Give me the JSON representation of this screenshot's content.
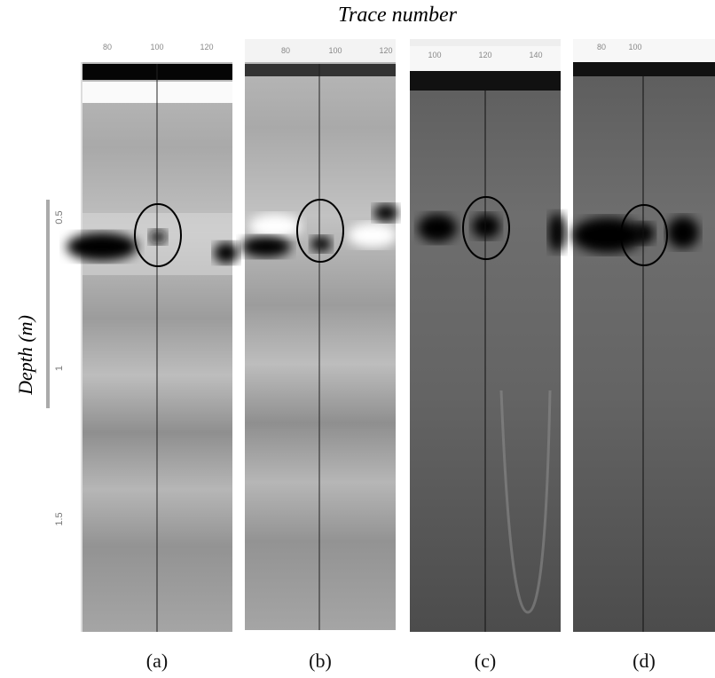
{
  "header": {
    "title": "Trace number"
  },
  "y_axis": {
    "title": "Depth (m)",
    "ticks": [
      "0.5",
      "1",
      "1.5"
    ]
  },
  "panels": [
    {
      "label": "(a)",
      "ticks": [
        "80",
        "100",
        "120"
      ]
    },
    {
      "label": "(b)",
      "ticks": [
        "80",
        "100",
        "120"
      ]
    },
    {
      "label": "(c)",
      "ticks": [
        "100",
        "120",
        "140"
      ]
    },
    {
      "label": "(d)",
      "ticks": [
        "80",
        "100"
      ]
    }
  ]
}
